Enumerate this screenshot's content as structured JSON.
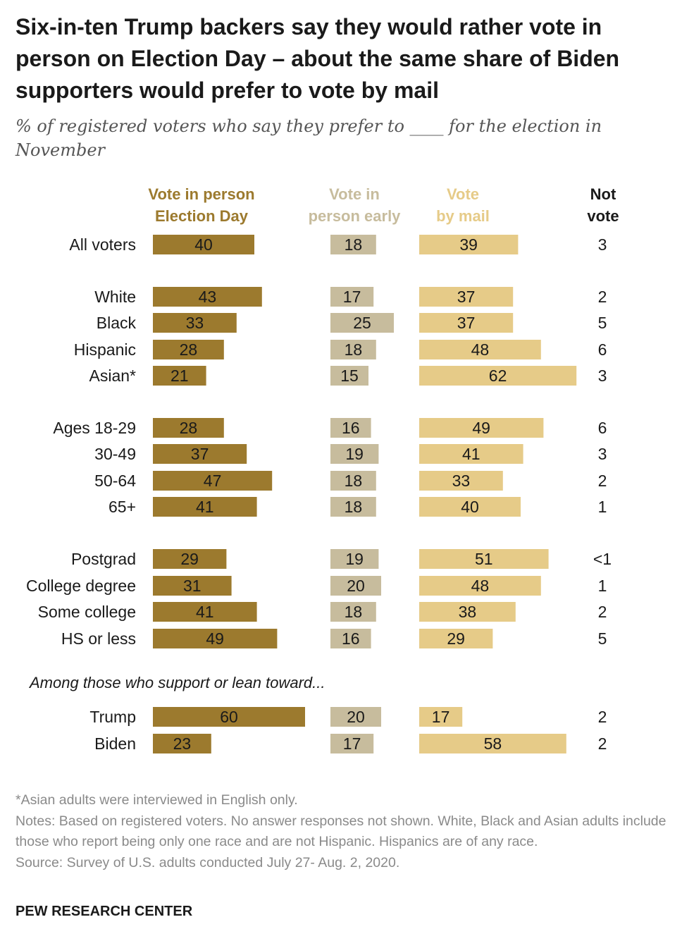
{
  "title": "Six-in-ten Trump backers say they would rather vote in person on Election Day – about the same share of Biden supporters would prefer to vote by mail",
  "subtitle": "% of registered voters who say they prefer to ____ for the election in November",
  "chart_data": {
    "type": "bar",
    "orientation": "horizontal",
    "series": [
      {
        "name": "Vote in person Election Day",
        "color": "#9c7a2e",
        "values": [
          40,
          43,
          33,
          28,
          21,
          28,
          37,
          47,
          41,
          29,
          31,
          41,
          49,
          60,
          23
        ]
      },
      {
        "name": "Vote in person early",
        "color": "#c7bc9d",
        "values": [
          18,
          17,
          25,
          18,
          15,
          16,
          19,
          18,
          18,
          19,
          20,
          18,
          16,
          20,
          17
        ]
      },
      {
        "name": "Vote by mail",
        "color": "#e6cb88",
        "values": [
          39,
          37,
          37,
          48,
          62,
          49,
          41,
          33,
          40,
          51,
          48,
          38,
          29,
          17,
          58
        ]
      }
    ],
    "not_vote": {
      "name": "Not vote",
      "values": [
        "3",
        "2",
        "5",
        "6",
        "3",
        "6",
        "3",
        "2",
        "1",
        "<1",
        "1",
        "2",
        "5",
        "2",
        "2"
      ]
    },
    "categories": [
      "All voters",
      "White",
      "Black",
      "Hispanic",
      "Asian*",
      "Ages 18-29",
      "30-49",
      "50-64",
      "65+",
      "Postgrad",
      "College degree",
      "Some college",
      "HS or less",
      "Trump",
      "Biden"
    ],
    "column_headers": [
      [
        "Vote in person",
        "Election Day"
      ],
      [
        "Vote in",
        "person early"
      ],
      [
        "Vote",
        "by mail"
      ],
      [
        "Not",
        "vote"
      ]
    ],
    "group_note": "Among those who support or lean toward...",
    "header_colors": [
      "#9c7a2e",
      "#c7bc9d",
      "#e6cb88",
      "#1a1a1a"
    ]
  },
  "notes": [
    "*Asian adults were interviewed in English only.",
    "Notes: Based on registered voters. No answer responses not shown. White, Black and Asian adults include those who report being only one race and are not Hispanic. Hispanics are of any race.",
    "Source: Survey of U.S. adults conducted July 27- Aug. 2, 2020."
  ],
  "footer": "PEW RESEARCH CENTER"
}
